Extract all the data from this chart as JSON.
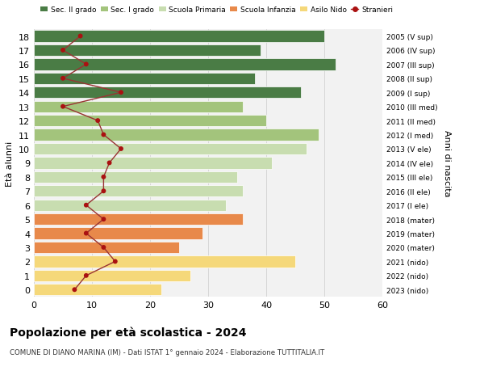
{
  "ages": [
    0,
    1,
    2,
    3,
    4,
    5,
    6,
    7,
    8,
    9,
    10,
    11,
    12,
    13,
    14,
    15,
    16,
    17,
    18
  ],
  "bar_values": [
    22,
    27,
    45,
    25,
    29,
    36,
    33,
    36,
    35,
    41,
    47,
    49,
    40,
    36,
    46,
    38,
    52,
    39,
    50
  ],
  "bar_colors": [
    "#f5d87a",
    "#f5d87a",
    "#f5d87a",
    "#e8894a",
    "#e8894a",
    "#e8894a",
    "#c8ddb0",
    "#c8ddb0",
    "#c8ddb0",
    "#c8ddb0",
    "#c8ddb0",
    "#a3c47c",
    "#a3c47c",
    "#a3c47c",
    "#4a7c45",
    "#4a7c45",
    "#4a7c45",
    "#4a7c45",
    "#4a7c45"
  ],
  "stranieri": [
    7,
    9,
    14,
    12,
    9,
    12,
    9,
    12,
    12,
    13,
    15,
    12,
    11,
    5,
    15,
    5,
    9,
    5,
    8
  ],
  "right_labels": [
    "2023 (nido)",
    "2022 (nido)",
    "2021 (nido)",
    "2020 (mater)",
    "2019 (mater)",
    "2018 (mater)",
    "2017 (I ele)",
    "2016 (II ele)",
    "2015 (III ele)",
    "2014 (IV ele)",
    "2013 (V ele)",
    "2012 (I med)",
    "2011 (II med)",
    "2010 (III med)",
    "2009 (I sup)",
    "2008 (II sup)",
    "2007 (III sup)",
    "2006 (IV sup)",
    "2005 (V sup)"
  ],
  "legend_labels": [
    "Sec. II grado",
    "Sec. I grado",
    "Scuola Primaria",
    "Scuola Infanzia",
    "Asilo Nido",
    "Stranieri"
  ],
  "legend_colors": [
    "#4a7c45",
    "#a3c47c",
    "#c8ddb0",
    "#e8894a",
    "#f5d87a",
    "#aa1111"
  ],
  "ylabel_right": "Anni di nascita",
  "title": "Popolazione per eta scolastica - 2024",
  "subtitle": "COMUNE DI DIANO MARINA (IM) - Dati ISTAT 1° gennaio 2024 - Elaborazione TUTTITALIA.IT",
  "xlim": [
    0,
    60
  ],
  "xticks": [
    0,
    10,
    20,
    30,
    40,
    50,
    60
  ],
  "bg_color": "#ffffff",
  "bar_bg_color": "#f2f2f2",
  "stranieri_color": "#aa1111",
  "stranieri_line_color": "#993333"
}
